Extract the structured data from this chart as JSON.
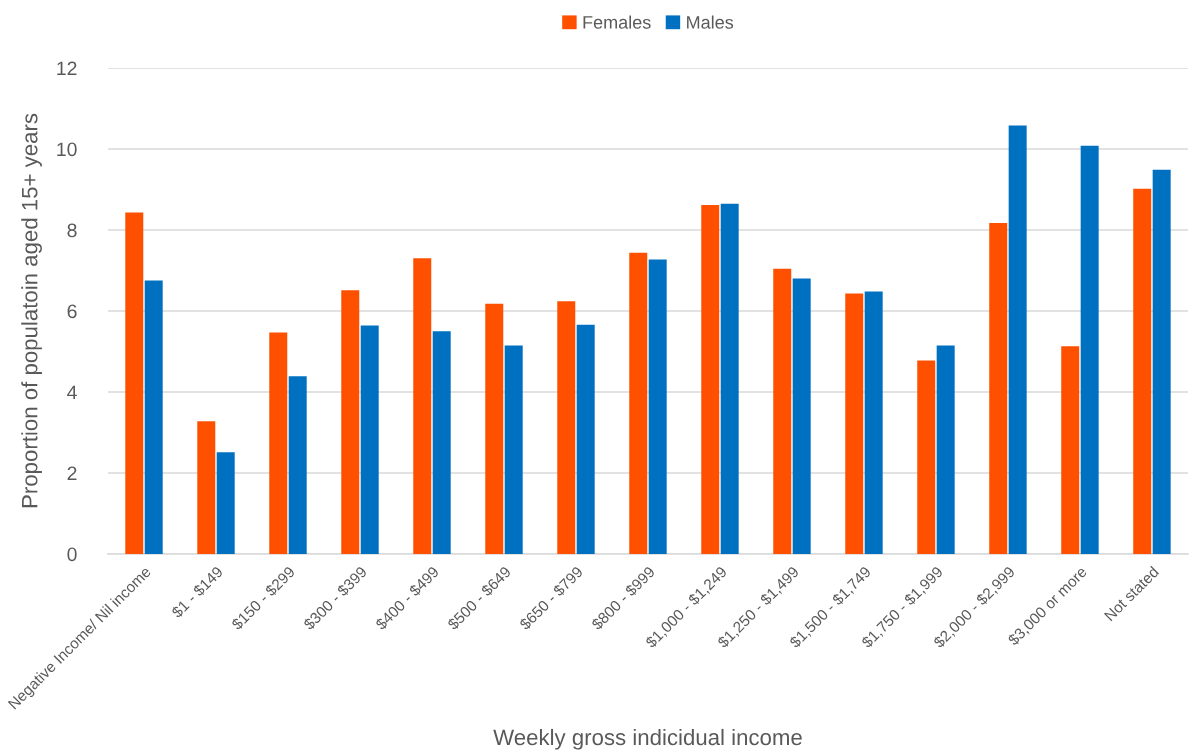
{
  "chart_data": {
    "type": "bar",
    "xlabel": "Weekly gross indicidual income",
    "ylabel": "Proportion of populatoin aged 15+ years",
    "categories": [
      "Negative Income/ Nil income",
      "$1 - $149",
      "$150 - $299",
      "$300 - $399",
      "$400 - $499",
      "$500 - $649",
      "$650 - $799",
      "$800 - $999",
      "$1,000 - $1,249",
      "$1,250 - $1,499",
      "$1,500 - $1,749",
      "$1,750 - $1,999",
      "$2,000 - $2,999",
      "$3,000 or more",
      "Not stated"
    ],
    "series": [
      {
        "name": "Females",
        "color": "#ff5000",
        "values": [
          8.43,
          3.28,
          5.47,
          6.51,
          7.3,
          6.18,
          6.24,
          7.44,
          8.62,
          7.04,
          6.43,
          4.78,
          8.17,
          5.13,
          9.02
        ]
      },
      {
        "name": "Males",
        "color": "#0070c0",
        "values": [
          6.75,
          2.51,
          4.39,
          5.64,
          5.5,
          5.15,
          5.66,
          7.27,
          8.65,
          6.8,
          6.48,
          5.15,
          10.58,
          10.08,
          9.49
        ]
      }
    ],
    "ylim": [
      0,
      12
    ],
    "yticks": [
      0,
      2,
      4,
      6,
      8,
      10,
      12
    ],
    "grid": "y",
    "legend": "top"
  }
}
